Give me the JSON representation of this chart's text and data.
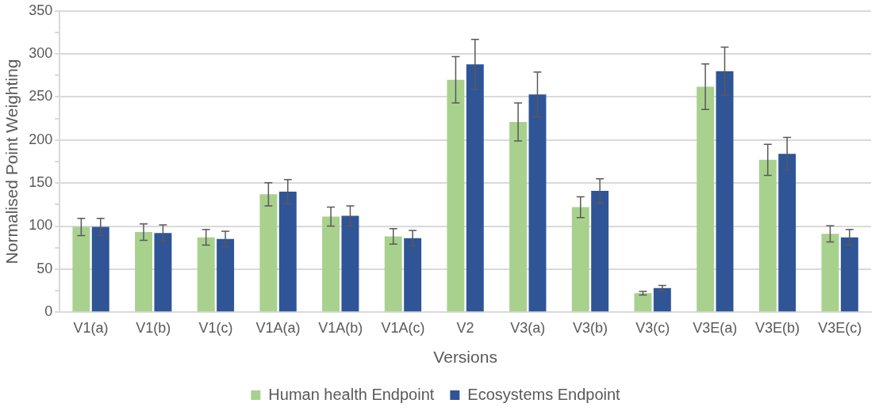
{
  "chart_data": {
    "type": "bar",
    "xlabel": "Versions",
    "ylabel": "Normalised Point Weighting",
    "categories": [
      "V1(a)",
      "V1(b)",
      "V1(c)",
      "V1A(a)",
      "V1A(b)",
      "V1A(c)",
      "V2",
      "V3(a)",
      "V3(b)",
      "V3(c)",
      "V3E(a)",
      "V3E(b)",
      "V3E(c)"
    ],
    "series": [
      {
        "name": "Human health Endpoint",
        "color": "#a9d18e",
        "values": [
          99,
          93,
          87,
          137,
          111,
          88,
          270,
          221,
          122,
          22,
          262,
          177,
          91
        ],
        "errors": [
          10,
          9.5,
          9,
          13.5,
          11,
          9,
          27,
          22,
          12,
          2,
          26.5,
          18,
          9.5
        ]
      },
      {
        "name": "Ecosystems Endpoint",
        "color": "#2f5597",
        "values": [
          99,
          92,
          85,
          140,
          112,
          86,
          288,
          253,
          141,
          28,
          280,
          184,
          87
        ],
        "errors": [
          10,
          9.5,
          9,
          14,
          11.5,
          9,
          29,
          26,
          14,
          3,
          28,
          19,
          9
        ]
      }
    ],
    "ylim": [
      0,
      350
    ],
    "yticks": [
      0,
      {
        "value": 25,
        "label": null
      },
      50,
      {
        "value": 75,
        "label": null
      },
      100,
      {
        "value": 125,
        "label": null
      },
      150,
      {
        "value": 175,
        "label": null
      },
      200,
      {
        "value": 225,
        "label": null
      },
      250,
      {
        "value": 275,
        "label": null
      },
      300,
      {
        "value": 325,
        "label": null
      },
      350
    ],
    "grid": "y",
    "legend": "bottom"
  }
}
